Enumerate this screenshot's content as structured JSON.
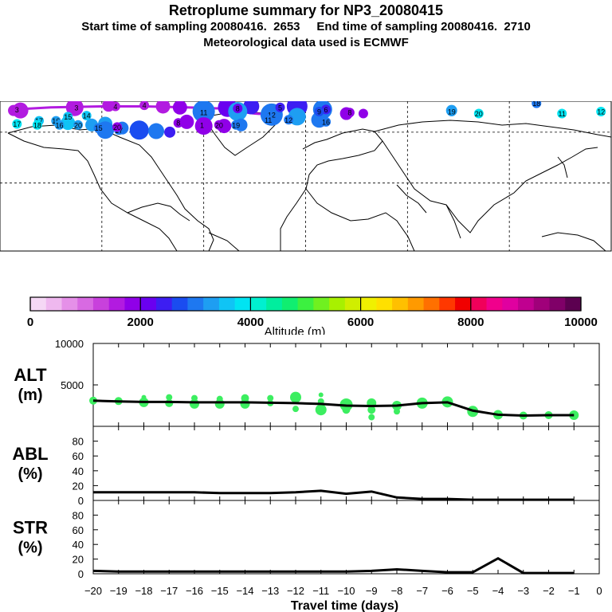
{
  "header": {
    "title": "Retroplume summary for NP3_20080415",
    "sampling_line": "Start time of sampling 20080416.  2653     End time of sampling 20080416.  2710",
    "met_line": "Meteorological data used is ECMWF"
  },
  "colorbar": {
    "ticks": [
      "0",
      "2000",
      "4000",
      "6000",
      "8000",
      "10000"
    ],
    "label": "Altitude (m)",
    "colors": [
      "#f5d8f5",
      "#efb8ef",
      "#e590e8",
      "#d86ae2",
      "#c841dc",
      "#b21be0",
      "#9000e8",
      "#6a00f0",
      "#3d1ef2",
      "#1a4cf0",
      "#1e78f0",
      "#1e9ef2",
      "#10c4f5",
      "#00e4f2",
      "#00f0d0",
      "#00ee9e",
      "#10ee70",
      "#3cf040",
      "#70f020",
      "#a8f000",
      "#d0ee00",
      "#f0f000",
      "#ffe000",
      "#ffc000",
      "#ff9a00",
      "#ff7000",
      "#ff3800",
      "#f00000",
      "#f0005a",
      "#f0008c",
      "#e000a0",
      "#c00090",
      "#a0007a",
      "#800068",
      "#5c0050"
    ]
  },
  "chart_data": [
    {
      "type": "scatter",
      "id": "alt",
      "panel_label": "ALT",
      "panel_unit": "(m)",
      "yticks": [
        "10000",
        "5000"
      ],
      "ylim": [
        0,
        10000
      ],
      "xlim": [
        -20,
        0
      ],
      "line": {
        "x": [
          -20,
          -19,
          -18,
          -17,
          -16,
          -15,
          -14,
          -13,
          -12,
          -11,
          -10,
          -9,
          -8,
          -7,
          -6,
          -5,
          -4,
          -3,
          -2,
          -1
        ],
        "y": [
          3100,
          3000,
          2950,
          2950,
          2900,
          2900,
          2900,
          2850,
          2800,
          2700,
          2500,
          2450,
          2500,
          2800,
          2900,
          1900,
          1400,
          1300,
          1350,
          1350
        ]
      },
      "points": [
        {
          "x": -20,
          "y": 3100,
          "r": 5
        },
        {
          "x": -19,
          "y": 3050,
          "r": 5
        },
        {
          "x": -18,
          "y": 3500,
          "r": 3
        },
        {
          "x": -18,
          "y": 2900,
          "r": 6
        },
        {
          "x": -17,
          "y": 3500,
          "r": 4
        },
        {
          "x": -17,
          "y": 2800,
          "r": 5
        },
        {
          "x": -16,
          "y": 3400,
          "r": 4
        },
        {
          "x": -16,
          "y": 2700,
          "r": 6
        },
        {
          "x": -15,
          "y": 3300,
          "r": 4
        },
        {
          "x": -15,
          "y": 2700,
          "r": 6
        },
        {
          "x": -14,
          "y": 3400,
          "r": 5
        },
        {
          "x": -14,
          "y": 2700,
          "r": 6
        },
        {
          "x": -13,
          "y": 3400,
          "r": 4
        },
        {
          "x": -13,
          "y": 2800,
          "r": 4
        },
        {
          "x": -12,
          "y": 3500,
          "r": 7
        },
        {
          "x": -12,
          "y": 2100,
          "r": 4
        },
        {
          "x": -11,
          "y": 3800,
          "r": 3
        },
        {
          "x": -11,
          "y": 3000,
          "r": 4
        },
        {
          "x": -11,
          "y": 2000,
          "r": 7
        },
        {
          "x": -10,
          "y": 2600,
          "r": 8
        },
        {
          "x": -10,
          "y": 2000,
          "r": 5
        },
        {
          "x": -9,
          "y": 2800,
          "r": 6
        },
        {
          "x": -9,
          "y": 2000,
          "r": 5
        },
        {
          "x": -9,
          "y": 1100,
          "r": 4
        },
        {
          "x": -8,
          "y": 2500,
          "r": 6
        },
        {
          "x": -8,
          "y": 1800,
          "r": 4
        },
        {
          "x": -7,
          "y": 2800,
          "r": 7
        },
        {
          "x": -6,
          "y": 2950,
          "r": 7
        },
        {
          "x": -5,
          "y": 1800,
          "r": 7
        },
        {
          "x": -4,
          "y": 1400,
          "r": 6
        },
        {
          "x": -3,
          "y": 1300,
          "r": 5
        },
        {
          "x": -2,
          "y": 1350,
          "r": 5
        },
        {
          "x": -1,
          "y": 1350,
          "r": 6
        }
      ]
    },
    {
      "type": "line",
      "id": "abl",
      "panel_label": "ABL",
      "panel_unit": "(%)",
      "yticks": [
        "80",
        "60",
        "40",
        "20",
        "0"
      ],
      "ylim": [
        0,
        100
      ],
      "x": [
        -20,
        -19,
        -18,
        -17,
        -16,
        -15,
        -14,
        -13,
        -12,
        -11,
        -10,
        -9,
        -8,
        -7,
        -6,
        -5,
        -4,
        -3,
        -2,
        -1
      ],
      "y": [
        11,
        11,
        11,
        11,
        11,
        10,
        10,
        10,
        11,
        13,
        9,
        12,
        4,
        2,
        2,
        1,
        1,
        1,
        1,
        1
      ]
    },
    {
      "type": "line",
      "id": "str",
      "panel_label": "STR",
      "panel_unit": "(%)",
      "yticks": [
        "80",
        "60",
        "40",
        "20",
        "0"
      ],
      "ylim": [
        0,
        100
      ],
      "x": [
        -20,
        -19,
        -18,
        -17,
        -16,
        -15,
        -14,
        -13,
        -12,
        -11,
        -10,
        -9,
        -8,
        -7,
        -6,
        -5,
        -4,
        -3,
        -2,
        -1
      ],
      "y": [
        4,
        3,
        3,
        3,
        3,
        3,
        3,
        3,
        3,
        3,
        3,
        4,
        6,
        4,
        2,
        2,
        21,
        1,
        1,
        1
      ],
      "xticks": [
        "−20",
        "−19",
        "−18",
        "−17",
        "−16",
        "−15",
        "−14",
        "−13",
        "−12",
        "−11",
        "−10",
        "−9",
        "−8",
        "−7",
        "−6",
        "−5",
        "−4",
        "−3",
        "−2",
        "−1",
        "0"
      ],
      "xlabel": "Travel time (days)"
    }
  ],
  "map": {
    "labels": [
      {
        "t": "3",
        "lon": -170,
        "lat": 82,
        "c": "#b21be0"
      },
      {
        "t": "3",
        "lon": -135,
        "lat": 84,
        "c": "#b21be0"
      },
      {
        "t": "4",
        "lon": -112,
        "lat": 85,
        "c": "#b21be0"
      },
      {
        "t": "4",
        "lon": -95,
        "lat": 86,
        "c": "#b21be0"
      },
      {
        "t": "8",
        "lon": -40,
        "lat": 83,
        "c": "#6a00f0"
      },
      {
        "t": "5",
        "lon": -15,
        "lat": 84,
        "c": "#3d1ef2"
      },
      {
        "t": "6",
        "lon": 12,
        "lat": 82,
        "c": "#3d1ef2"
      },
      {
        "t": "9",
        "lon": 8,
        "lat": 80,
        "c": "#1a4cf0"
      },
      {
        "t": "11",
        "lon": -60,
        "lat": 79,
        "c": "#1e78f0"
      },
      {
        "t": "12",
        "lon": -20,
        "lat": 77,
        "c": "#1e78f0"
      },
      {
        "t": "8",
        "lon": 26,
        "lat": 79,
        "c": "#9000e8"
      },
      {
        "t": "14",
        "lon": -129,
        "lat": 76,
        "c": "#10c4f5"
      },
      {
        "t": "15",
        "lon": -140,
        "lat": 75,
        "c": "#10c4f5"
      },
      {
        "t": "16",
        "lon": -147,
        "lat": 71,
        "c": "#1e9ef2"
      },
      {
        "t": "17",
        "lon": -157,
        "lat": 71,
        "c": "#10c4f5"
      },
      {
        "t": "18",
        "lon": -158,
        "lat": 67,
        "c": "#00e4f2"
      },
      {
        "t": "20",
        "lon": -134,
        "lat": 67,
        "c": "#1e9ef2"
      },
      {
        "t": "16",
        "lon": -145,
        "lat": 67,
        "c": "#1e9ef2"
      },
      {
        "t": "15",
        "lon": -122,
        "lat": 64,
        "c": "#1e78f0"
      },
      {
        "t": "17",
        "lon": -110,
        "lat": 62,
        "c": "#1e78f0"
      },
      {
        "t": "8",
        "lon": -75,
        "lat": 69,
        "c": "#9000e8"
      },
      {
        "t": "1",
        "lon": -61,
        "lat": 67,
        "c": "#9000e8"
      },
      {
        "t": "20",
        "lon": -51,
        "lat": 67,
        "c": "#9000e8"
      },
      {
        "t": "19",
        "lon": -41,
        "lat": 67,
        "c": "#1e78f0"
      },
      {
        "t": "11",
        "lon": -22,
        "lat": 72,
        "c": "#1e78f0"
      },
      {
        "t": "12",
        "lon": -10,
        "lat": 72,
        "c": "#1e78f0"
      },
      {
        "t": "16",
        "lon": 12,
        "lat": 70,
        "c": "#1e78f0"
      },
      {
        "t": "19",
        "lon": 86,
        "lat": 80,
        "c": "#1e9ef2"
      },
      {
        "t": "20",
        "lon": 102,
        "lat": 78,
        "c": "#00e4f2"
      },
      {
        "t": "18",
        "lon": 136,
        "lat": 88,
        "c": "#1e78f0"
      },
      {
        "t": "11",
        "lon": 151,
        "lat": 78,
        "c": "#00e4f2"
      },
      {
        "t": "12",
        "lon": 174,
        "lat": 80,
        "c": "#00e4f2"
      },
      {
        "t": "17",
        "lon": -170,
        "lat": 68,
        "c": "#00e4f2"
      },
      {
        "t": "20",
        "lon": -111,
        "lat": 65,
        "c": "#9000e8"
      }
    ],
    "dots": [
      {
        "lon": -168,
        "lat": 81,
        "s": 10,
        "c": "#b21be0"
      },
      {
        "lon": -136,
        "lat": 84,
        "s": 11,
        "c": "#b21be0"
      },
      {
        "lon": -116,
        "lat": 86,
        "s": 8,
        "c": "#b21be0"
      },
      {
        "lon": -84,
        "lat": 85,
        "s": 9,
        "c": "#b21be0"
      },
      {
        "lon": -74,
        "lat": 84,
        "s": 9,
        "c": "#9000e8"
      },
      {
        "lon": -46,
        "lat": 84,
        "s": 12,
        "c": "#6a00f0"
      },
      {
        "lon": -32,
        "lat": 85,
        "s": 10,
        "c": "#3d1ef2"
      },
      {
        "lon": -5,
        "lat": 85,
        "s": 13,
        "c": "#3d1ef2"
      },
      {
        "lon": 10,
        "lat": 82,
        "s": 12,
        "c": "#1e78f0"
      },
      {
        "lon": -60,
        "lat": 80,
        "s": 14,
        "c": "#1e78f0"
      },
      {
        "lon": -40,
        "lat": 80,
        "s": 12,
        "c": "#1e9ef2"
      },
      {
        "lon": -20,
        "lat": 77,
        "s": 14,
        "c": "#1e78f0"
      },
      {
        "lon": -5,
        "lat": 75,
        "s": 11,
        "c": "#1e9ef2"
      },
      {
        "lon": 8,
        "lat": 72,
        "s": 10,
        "c": "#1e78f0"
      },
      {
        "lon": 24,
        "lat": 78,
        "s": 8,
        "c": "#9000e8"
      },
      {
        "lon": -70,
        "lat": 70,
        "s": 9,
        "c": "#9000e8"
      },
      {
        "lon": -60,
        "lat": 66,
        "s": 11,
        "c": "#9000e8"
      },
      {
        "lon": -48,
        "lat": 66,
        "s": 9,
        "c": "#9000e8"
      },
      {
        "lon": -38,
        "lat": 67,
        "s": 8,
        "c": "#1e78f0"
      },
      {
        "lon": -118,
        "lat": 68,
        "s": 9,
        "c": "#1e9ef2"
      },
      {
        "lon": -108,
        "lat": 64,
        "s": 8,
        "c": "#1e78f0"
      },
      {
        "lon": -118,
        "lat": 62,
        "s": 11,
        "c": "#1e78f0"
      },
      {
        "lon": -98,
        "lat": 62,
        "s": 12,
        "c": "#1a4cf0"
      },
      {
        "lon": -88,
        "lat": 61,
        "s": 10,
        "c": "#1e78f0"
      },
      {
        "lon": -80,
        "lat": 60,
        "s": 7,
        "c": "#3d1ef2"
      },
      {
        "lon": -140,
        "lat": 69,
        "s": 9,
        "c": "#10c4f5"
      },
      {
        "lon": -126,
        "lat": 67,
        "s": 8,
        "c": "#1e9ef2"
      },
      {
        "lon": 86,
        "lat": 81,
        "s": 7,
        "c": "#1e9ef2"
      },
      {
        "lon": 34,
        "lat": 78,
        "s": 6,
        "c": "#9000e8"
      },
      {
        "lon": -172,
        "lat": 81,
        "s": 7,
        "c": "#b21be0"
      }
    ],
    "track": {
      "lon": [
        -172,
        -150,
        -120,
        -95,
        -70,
        -50,
        -40,
        -30,
        -20
      ],
      "lat": [
        82,
        84,
        85,
        85,
        84,
        83,
        80,
        78,
        77
      ],
      "c": "#b21be0"
    }
  }
}
